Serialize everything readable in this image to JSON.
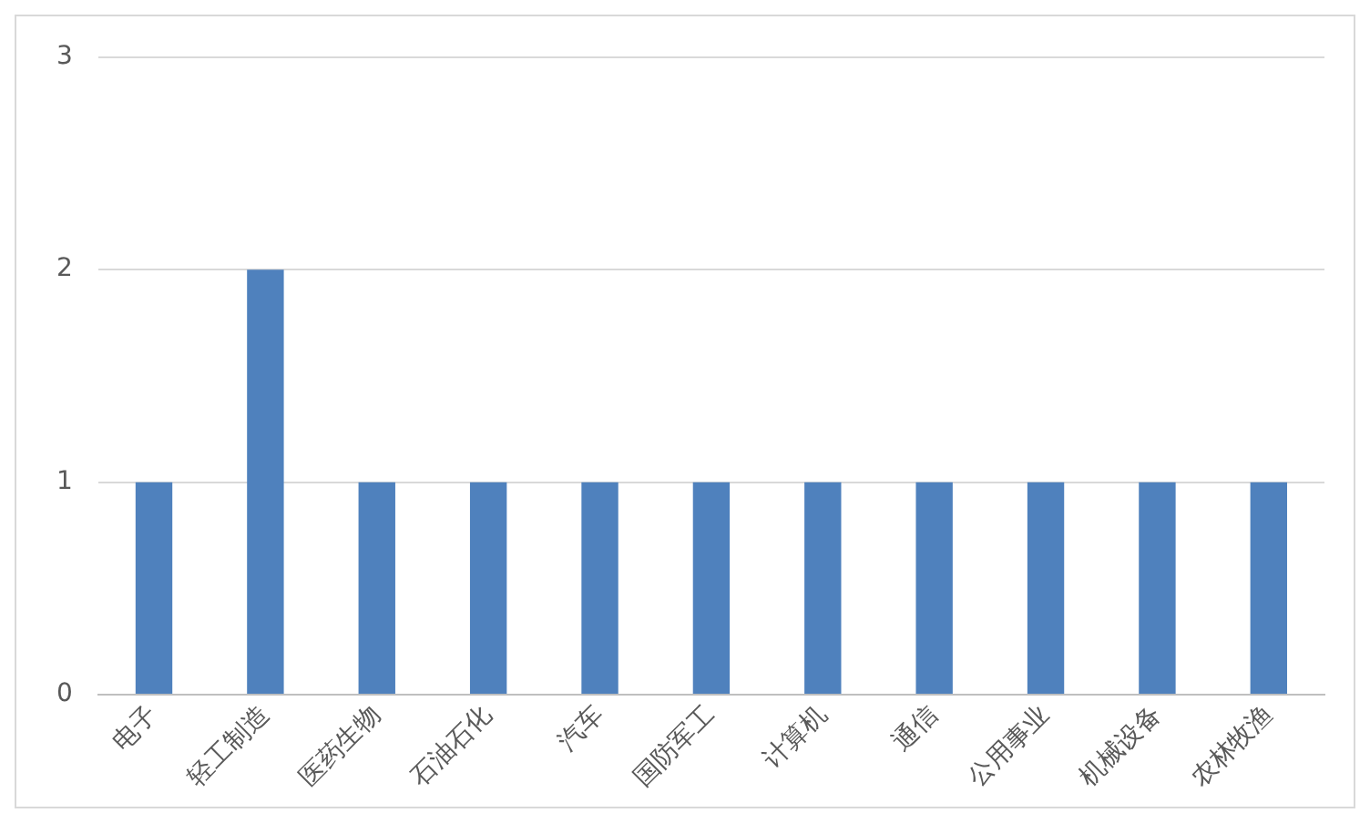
{
  "chart_data": {
    "type": "bar",
    "categories": [
      "电子",
      "轻工制造",
      "医药生物",
      "石油石化",
      "汽车",
      "国防军工",
      "计算机",
      "通信",
      "公用事业",
      "机械设备",
      "农林牧渔"
    ],
    "values": [
      1,
      2,
      1,
      1,
      1,
      1,
      1,
      1,
      1,
      1,
      1
    ],
    "color": "#4f81bd",
    "ylim": [
      0,
      3
    ],
    "yticks": [
      0,
      1,
      2,
      3
    ],
    "grid": "y"
  }
}
